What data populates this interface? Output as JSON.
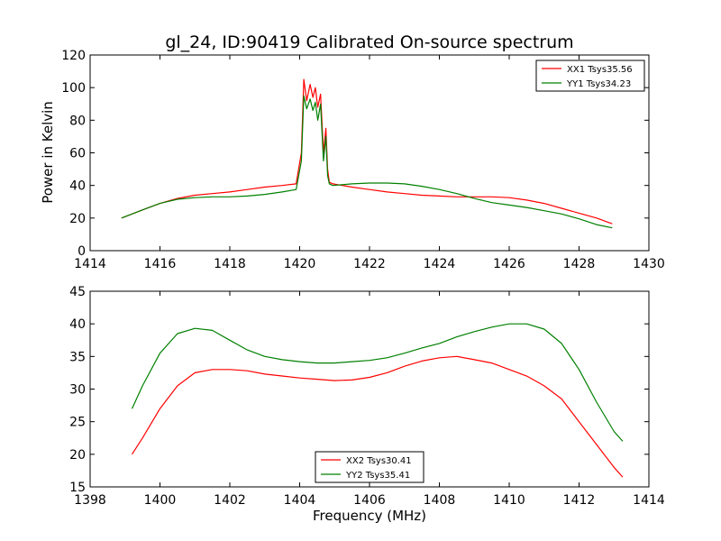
{
  "figure": {
    "title": "gl_24, ID:90419 Calibrated On-source spectrum",
    "xlabel": "Frequency (MHz)",
    "ylabel": "Power in Kelvin"
  },
  "colors": {
    "red": "#ff0000",
    "green": "#008000",
    "axis": "#000000",
    "background": "#ffffff"
  },
  "chart_data": [
    {
      "type": "line",
      "title": "gl_24, ID:90419 Calibrated On-source spectrum",
      "xlabel": "",
      "ylabel": "Power in Kelvin",
      "xlim": [
        1414,
        1430
      ],
      "ylim": [
        0,
        120
      ],
      "xticks": [
        1414,
        1416,
        1418,
        1420,
        1422,
        1424,
        1426,
        1428,
        1430
      ],
      "yticks": [
        0,
        20,
        40,
        60,
        80,
        100,
        120
      ],
      "grid": false,
      "legend": "top-right",
      "series": [
        {
          "name": "XX1 Tsys35.56",
          "color": "#ff0000",
          "x": [
            1414.9,
            1415.5,
            1416.0,
            1416.5,
            1417.0,
            1417.5,
            1418.0,
            1418.5,
            1419.0,
            1419.5,
            1419.9,
            1420.05,
            1420.12,
            1420.2,
            1420.3,
            1420.38,
            1420.45,
            1420.52,
            1420.6,
            1420.68,
            1420.75,
            1420.8,
            1420.85,
            1420.95,
            1421.5,
            1422.0,
            1422.5,
            1423.0,
            1423.5,
            1424.0,
            1424.5,
            1425.0,
            1425.5,
            1426.0,
            1426.5,
            1427.0,
            1427.5,
            1428.0,
            1428.5,
            1428.95
          ],
          "y": [
            20,
            25,
            29,
            32,
            34,
            35,
            36,
            37.5,
            39,
            40,
            41,
            60,
            105,
            92,
            102,
            94,
            100,
            88,
            96,
            60,
            75,
            50,
            42,
            41,
            39,
            37.5,
            36,
            35,
            34,
            33.5,
            33,
            33,
            33,
            32.5,
            31,
            29,
            26,
            23,
            20,
            16.5
          ]
        },
        {
          "name": "YY1 Tsys34.23",
          "color": "#008000",
          "x": [
            1414.9,
            1415.5,
            1416.0,
            1416.5,
            1417.0,
            1417.5,
            1418.0,
            1418.5,
            1419.0,
            1419.5,
            1419.9,
            1420.05,
            1420.12,
            1420.2,
            1420.3,
            1420.38,
            1420.45,
            1420.52,
            1420.6,
            1420.68,
            1420.75,
            1420.8,
            1420.85,
            1420.95,
            1421.5,
            1422.0,
            1422.5,
            1423.0,
            1423.5,
            1424.0,
            1424.5,
            1425.0,
            1425.5,
            1426.0,
            1426.5,
            1427.0,
            1427.5,
            1428.0,
            1428.5,
            1428.95
          ],
          "y": [
            20,
            25,
            29,
            31.5,
            32.5,
            33,
            33,
            33.5,
            34.5,
            36,
            37.5,
            55,
            95,
            87,
            93,
            86,
            91,
            80,
            90,
            55,
            70,
            46,
            41,
            40,
            41,
            41.5,
            41.5,
            41,
            39.5,
            37.5,
            35,
            32,
            29.5,
            28,
            26.5,
            24.5,
            22.5,
            19.5,
            16,
            14
          ]
        }
      ]
    },
    {
      "type": "line",
      "title": "",
      "xlabel": "Frequency (MHz)",
      "ylabel": "",
      "xlim": [
        1398,
        1414
      ],
      "ylim": [
        15,
        45
      ],
      "xticks": [
        1398,
        1400,
        1402,
        1404,
        1406,
        1408,
        1410,
        1412,
        1414
      ],
      "yticks": [
        15,
        20,
        25,
        30,
        35,
        40,
        45
      ],
      "grid": false,
      "legend": "lower-center",
      "series": [
        {
          "name": "XX2 Tsys30.41",
          "color": "#ff0000",
          "x": [
            1399.2,
            1399.5,
            1400.0,
            1400.5,
            1401.0,
            1401.5,
            1402.0,
            1402.5,
            1403.0,
            1403.5,
            1404.0,
            1404.5,
            1405.0,
            1405.5,
            1406.0,
            1406.5,
            1407.0,
            1407.5,
            1408.0,
            1408.5,
            1409.0,
            1409.5,
            1410.0,
            1410.5,
            1411.0,
            1411.5,
            1412.0,
            1412.5,
            1413.0,
            1413.25
          ],
          "y": [
            20,
            22.5,
            27,
            30.5,
            32.5,
            33,
            33,
            32.8,
            32.3,
            32,
            31.7,
            31.5,
            31.3,
            31.4,
            31.8,
            32.5,
            33.5,
            34.3,
            34.8,
            35,
            34.5,
            34,
            33,
            32,
            30.5,
            28.5,
            25,
            21.5,
            18,
            16.5
          ]
        },
        {
          "name": "YY2 Tsys35.41",
          "color": "#008000",
          "x": [
            1399.2,
            1399.5,
            1400.0,
            1400.5,
            1401.0,
            1401.5,
            1402.0,
            1402.5,
            1403.0,
            1403.5,
            1404.0,
            1404.5,
            1405.0,
            1405.5,
            1406.0,
            1406.5,
            1407.0,
            1407.5,
            1408.0,
            1408.5,
            1409.0,
            1409.5,
            1410.0,
            1410.5,
            1411.0,
            1411.5,
            1412.0,
            1412.5,
            1413.0,
            1413.25
          ],
          "y": [
            27,
            30.5,
            35.5,
            38.5,
            39.3,
            39,
            37.5,
            36,
            35,
            34.5,
            34.2,
            34,
            34,
            34.2,
            34.4,
            34.8,
            35.5,
            36.3,
            37,
            38,
            38.8,
            39.5,
            40,
            40,
            39.2,
            37,
            33,
            28,
            23.5,
            22
          ]
        }
      ]
    }
  ]
}
